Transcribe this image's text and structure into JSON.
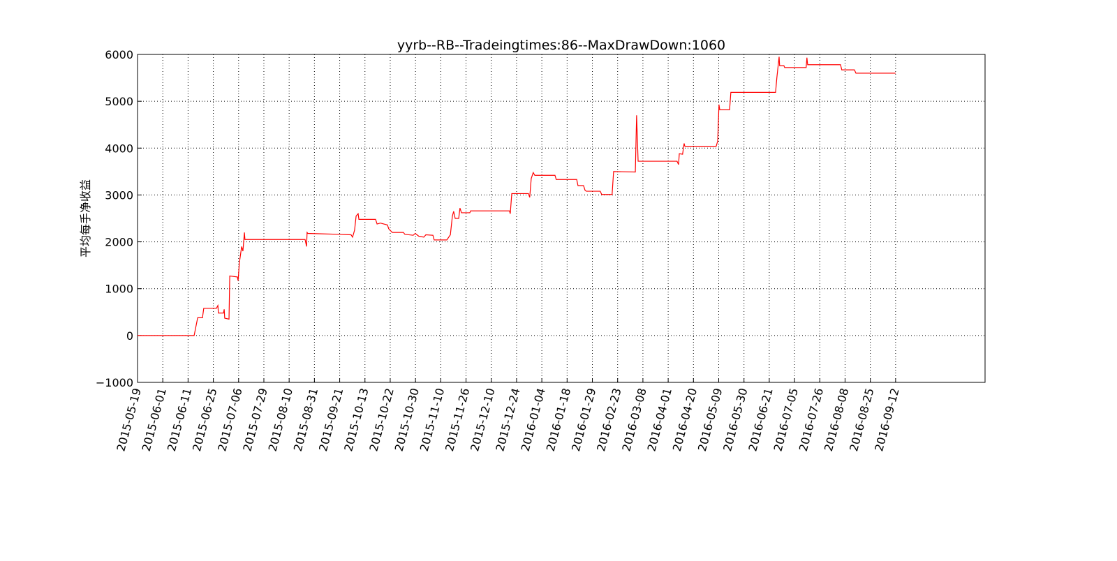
{
  "chart_data": {
    "type": "line",
    "title": "yyrb--RB--Tradeingtimes:86--MaxDrawDown:1060",
    "y_label": "平均每手净收益",
    "xlim": [
      0,
      335.4
    ],
    "ylim": [
      -1000,
      6000
    ],
    "yticks": [
      {
        "value": -1000,
        "label": "−1000"
      },
      0,
      1000,
      2000,
      3000,
      4000,
      5000,
      6000
    ],
    "xticks": [
      {
        "value": 0,
        "label": "2015-05-19"
      },
      {
        "value": 10,
        "label": "2015-06-01"
      },
      {
        "value": 20,
        "label": "2015-06-11"
      },
      {
        "value": 30,
        "label": "2015-06-25"
      },
      {
        "value": 40,
        "label": "2015-07-06"
      },
      {
        "value": 50,
        "label": "2015-07-29"
      },
      {
        "value": 60,
        "label": "2015-08-10"
      },
      {
        "value": 70,
        "label": "2015-08-31"
      },
      {
        "value": 80,
        "label": "2015-09-21"
      },
      {
        "value": 90,
        "label": "2015-10-13"
      },
      {
        "value": 100,
        "label": "2015-10-22"
      },
      {
        "value": 110,
        "label": "2015-10-30"
      },
      {
        "value": 120,
        "label": "2015-11-10"
      },
      {
        "value": 130,
        "label": "2015-11-26"
      },
      {
        "value": 140,
        "label": "2015-12-10"
      },
      {
        "value": 150,
        "label": "2015-12-24"
      },
      {
        "value": 160,
        "label": "2016-01-04"
      },
      {
        "value": 170,
        "label": "2016-01-18"
      },
      {
        "value": 180,
        "label": "2016-01-29"
      },
      {
        "value": 190,
        "label": "2016-02-23"
      },
      {
        "value": 200,
        "label": "2016-03-08"
      },
      {
        "value": 210,
        "label": "2016-04-01"
      },
      {
        "value": 220,
        "label": "2016-04-20"
      },
      {
        "value": 230,
        "label": "2016-05-09"
      },
      {
        "value": 240,
        "label": "2016-05-30"
      },
      {
        "value": 250,
        "label": "2016-06-21"
      },
      {
        "value": 260,
        "label": "2016-07-05"
      },
      {
        "value": 270,
        "label": "2016-07-26"
      },
      {
        "value": 280,
        "label": "2016-08-08"
      },
      {
        "value": 290,
        "label": "2016-08-25"
      },
      {
        "value": 300,
        "label": "2016-09-12"
      }
    ],
    "grid": true,
    "x": [
      0,
      22.4,
      23.8,
      25.7,
      26.2,
      31.2,
      31.8,
      32.0,
      34.0,
      34.3,
      34.5,
      36.2,
      36.5,
      39.5,
      39.8,
      40.3,
      41.2,
      41.7,
      42.3,
      42.5,
      66.3,
      66.9,
      67.1,
      67.4,
      79.6,
      84.5,
      85.1,
      85.9,
      86.5,
      87.3,
      87.6,
      94.2,
      94.8,
      96.1,
      98.9,
      99.4,
      100.8,
      105.2,
      105.8,
      109.1,
      109.9,
      111.3,
      113.3,
      114.1,
      116.9,
      117.4,
      122.4,
      123.8,
      124.6,
      125.1,
      125.7,
      127.1,
      127.6,
      128.2,
      131.5,
      131.8,
      147.2,
      147.5,
      148.1,
      154.7,
      155.2,
      155.8,
      156.6,
      157.2,
      165.2,
      165.7,
      166.6,
      173.8,
      174.3,
      176.5,
      177.1,
      177.6,
      183.1,
      183.7,
      187.8,
      188.4,
      197.0,
      197.5,
      198.1,
      213.5,
      214.1,
      214.4,
      215.7,
      216.3,
      216.6,
      229.0,
      229.6,
      230.1,
      230.4,
      234.3,
      234.8,
      252.5,
      253.0,
      253.9,
      254.1,
      255.8,
      256.1,
      264.6,
      264.9,
      265.2,
      278.2,
      278.7,
      283.7,
      284.3,
      300.0
    ],
    "series": [
      {
        "color": "#ff0000",
        "values": [
          0,
          0,
          380,
          380,
          580,
          580,
          640,
          480,
          480,
          560,
          370,
          350,
          1270,
          1250,
          1170,
          1550,
          1900,
          1800,
          2200,
          2050,
          2050,
          1900,
          2200,
          2180,
          2160,
          2150,
          2100,
          2250,
          2550,
          2600,
          2480,
          2480,
          2380,
          2400,
          2360,
          2280,
          2200,
          2200,
          2160,
          2140,
          2180,
          2120,
          2100,
          2150,
          2140,
          2040,
          2040,
          2150,
          2550,
          2650,
          2500,
          2500,
          2720,
          2620,
          2620,
          2660,
          2660,
          2600,
          3030,
          3030,
          2950,
          3350,
          3480,
          3420,
          3420,
          3330,
          3330,
          3330,
          3200,
          3200,
          3100,
          3080,
          3080,
          3010,
          3010,
          3500,
          3490,
          4700,
          3720,
          3720,
          3650,
          3880,
          3870,
          4100,
          4040,
          4040,
          4150,
          4930,
          4820,
          4820,
          5190,
          5190,
          5500,
          5950,
          5760,
          5760,
          5720,
          5720,
          5930,
          5780,
          5780,
          5670,
          5670,
          5600,
          5600
        ]
      }
    ]
  }
}
